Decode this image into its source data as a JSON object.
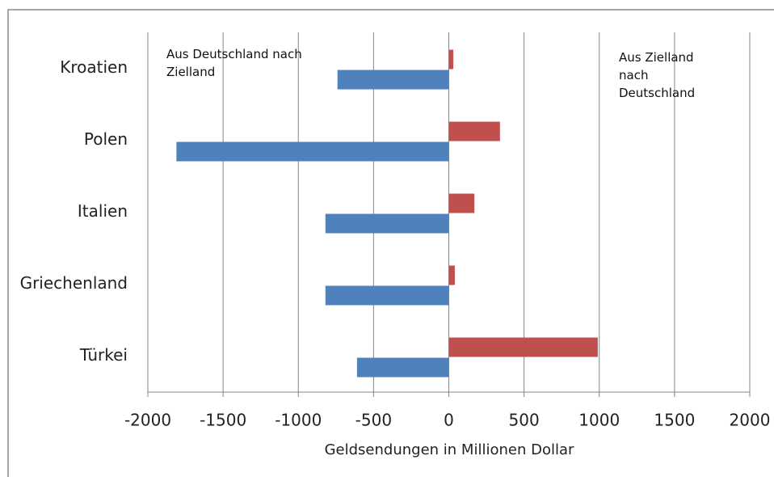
{
  "chart_data": {
    "type": "hbar",
    "xlabel": "Geldsendungen in Millionen Dollar",
    "categories": [
      "Kroatien",
      "Polen",
      "Italien",
      "Griechenland",
      "Türkei"
    ],
    "series": [
      {
        "name": "Aus Deutschland nach Zielland",
        "color": "#4f81bd",
        "values": [
          -740,
          -1810,
          -820,
          -820,
          -610
        ]
      },
      {
        "name": "Aus Zielland nach Deutschland",
        "color": "#c0504d",
        "values": [
          30,
          340,
          170,
          40,
          990
        ]
      }
    ],
    "xlim": [
      -2000,
      2000
    ],
    "xticks": [
      -2000,
      -1500,
      -1000,
      -500,
      0,
      500,
      1000,
      1500,
      2000
    ],
    "grid": true
  }
}
